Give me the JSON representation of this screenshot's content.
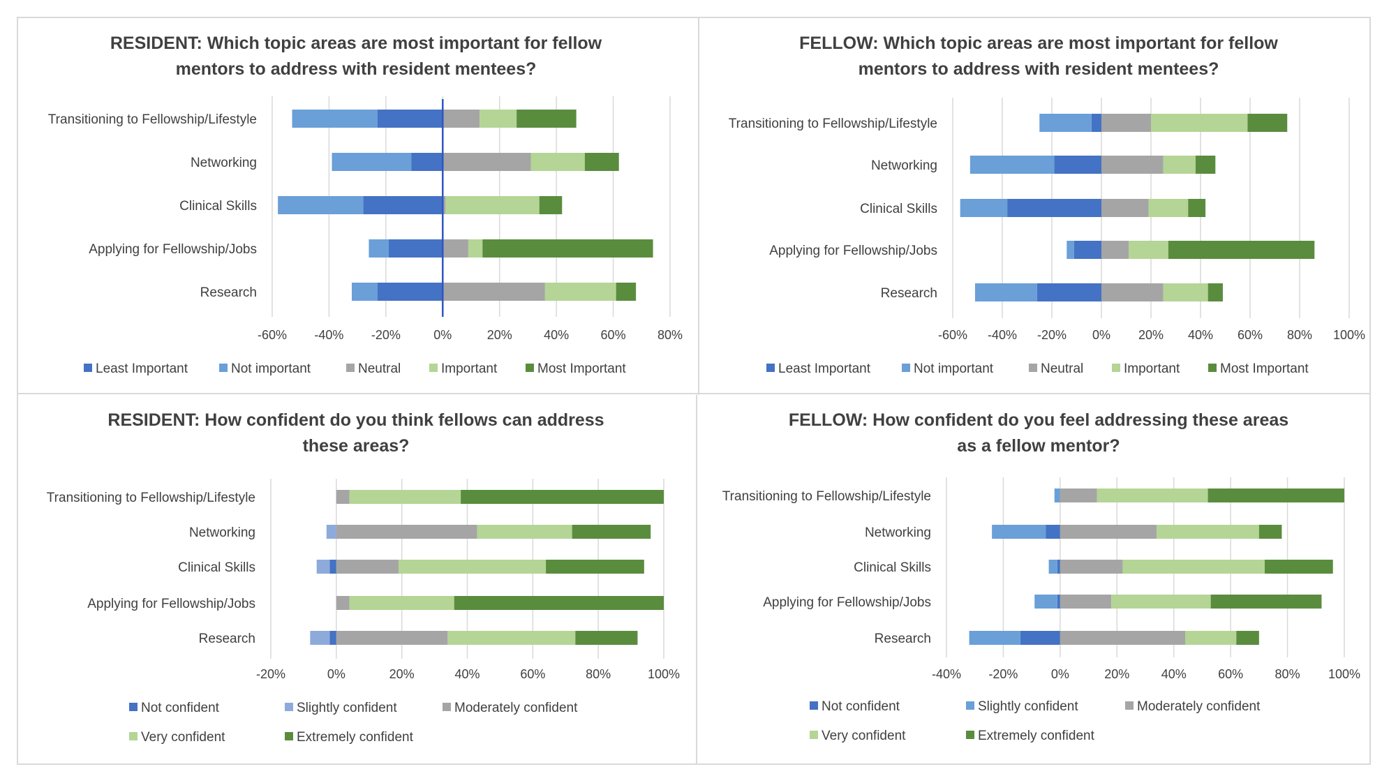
{
  "chart_data": [
    {
      "type": "bar",
      "subtype": "diverging-stacked-horizontal",
      "title": "RESIDENT: Which topic areas are most important for fellow mentors to address with resident mentees?",
      "title_lines": [
        "RESIDENT: Which topic areas are most important for fellow",
        "mentors to address with resident mentees?"
      ],
      "categories": [
        "Transitioning to Fellowship/Lifestyle",
        "Networking",
        "Clinical Skills",
        "Applying for Fellowship/Jobs",
        "Research"
      ],
      "xlim": [
        -60,
        80
      ],
      "xticks": [
        -60,
        -40,
        -20,
        0,
        20,
        40,
        60,
        80
      ],
      "tick_labels": [
        "-60%",
        "-40%",
        "-20%",
        "0%",
        "20%",
        "40%",
        "60%",
        "80%"
      ],
      "zero_line": true,
      "grid": true,
      "legend_position": "bottom",
      "series": [
        {
          "name": "Least Important",
          "color": "#4472c4",
          "values": [
            -23,
            -11,
            -28,
            -19,
            -23
          ]
        },
        {
          "name": "Not important",
          "color": "#6a9fd8",
          "values": [
            -30,
            -28,
            -30,
            -7,
            -9
          ]
        },
        {
          "name": "Neutral",
          "color": "#a5a5a5",
          "values": [
            13,
            31,
            1,
            9,
            36
          ]
        },
        {
          "name": "Important",
          "color": "#b4d595",
          "values": [
            13,
            19,
            33,
            5,
            25
          ]
        },
        {
          "name": "Most Important",
          "color": "#5a8c3e",
          "values": [
            21,
            12,
            8,
            60,
            7
          ]
        }
      ],
      "negative_series": [
        "Least Important",
        "Not important"
      ]
    },
    {
      "type": "bar",
      "subtype": "diverging-stacked-horizontal",
      "title": "FELLOW: Which topic areas are most important for fellow mentors to address with resident mentees?",
      "title_lines": [
        "FELLOW: Which topic areas are most important for fellow",
        "mentors to address with resident mentees?"
      ],
      "categories": [
        "Transitioning to Fellowship/Lifestyle",
        "Networking",
        "Clinical Skills",
        "Applying for Fellowship/Jobs",
        "Research"
      ],
      "xlim": [
        -60,
        100
      ],
      "xticks": [
        -60,
        -40,
        -20,
        0,
        20,
        40,
        60,
        80,
        100
      ],
      "tick_labels": [
        "-60%",
        "-40%",
        "-20%",
        "0%",
        "20%",
        "40%",
        "60%",
        "80%",
        "100%"
      ],
      "zero_line": false,
      "grid": true,
      "legend_position": "bottom",
      "series": [
        {
          "name": "Least Important",
          "color": "#4472c4",
          "values": [
            -4,
            -19,
            -38,
            -11,
            -26
          ]
        },
        {
          "name": "Not important",
          "color": "#6a9fd8",
          "values": [
            -21,
            -34,
            -19,
            -3,
            -25
          ]
        },
        {
          "name": "Neutral",
          "color": "#a5a5a5",
          "values": [
            20,
            25,
            19,
            11,
            25
          ]
        },
        {
          "name": "Important",
          "color": "#b4d595",
          "values": [
            39,
            13,
            16,
            16,
            18
          ]
        },
        {
          "name": "Most Important",
          "color": "#5a8c3e",
          "values": [
            16,
            8,
            7,
            59,
            6
          ]
        }
      ],
      "negative_series": [
        "Least Important",
        "Not important"
      ]
    },
    {
      "type": "bar",
      "subtype": "diverging-stacked-horizontal",
      "title": "RESIDENT: How confident do you think fellows can address these areas?",
      "title_lines": [
        "RESIDENT: How confident do you think fellows can address",
        "these areas?"
      ],
      "categories": [
        "Transitioning to Fellowship/Lifestyle",
        "Networking",
        "Clinical Skills",
        "Applying for Fellowship/Jobs",
        "Research"
      ],
      "xlim": [
        -20,
        100
      ],
      "xticks": [
        -20,
        0,
        20,
        40,
        60,
        80,
        100
      ],
      "tick_labels": [
        "-20%",
        "0%",
        "20%",
        "40%",
        "60%",
        "80%",
        "100%"
      ],
      "zero_line": false,
      "grid": true,
      "legend_position": "bottom",
      "series": [
        {
          "name": "Not confident",
          "color": "#4472c4",
          "values": [
            0,
            0,
            -2,
            0,
            -2
          ]
        },
        {
          "name": "Slightly confident",
          "color": "#8eaadb",
          "values": [
            0,
            -3,
            -4,
            0,
            -6
          ]
        },
        {
          "name": "Moderately confident",
          "color": "#a5a5a5",
          "values": [
            4,
            43,
            19,
            4,
            34
          ]
        },
        {
          "name": "Very confident",
          "color": "#b4d595",
          "values": [
            34,
            29,
            45,
            32,
            39
          ]
        },
        {
          "name": "Extremely confident",
          "color": "#5a8c3e",
          "values": [
            62,
            24,
            30,
            64,
            19
          ]
        }
      ],
      "negative_series": [
        "Not confident",
        "Slightly confident"
      ]
    },
    {
      "type": "bar",
      "subtype": "diverging-stacked-horizontal",
      "title": "FELLOW: How confident do you feel addressing these areas as a fellow mentor?",
      "title_lines": [
        "FELLOW: How confident do you feel addressing these areas",
        "as a fellow mentor?"
      ],
      "categories": [
        "Transitioning to Fellowship/Lifestyle",
        "Networking",
        "Clinical Skills",
        "Applying for Fellowship/Jobs",
        "Research"
      ],
      "xlim": [
        -40,
        100
      ],
      "xticks": [
        -40,
        -20,
        0,
        20,
        40,
        60,
        80,
        100
      ],
      "tick_labels": [
        "-40%",
        "-20%",
        "0%",
        "20%",
        "40%",
        "60%",
        "80%",
        "100%"
      ],
      "zero_line": false,
      "grid": true,
      "legend_position": "bottom",
      "series": [
        {
          "name": "Not confident",
          "color": "#4472c4",
          "values": [
            0,
            -5,
            -1,
            -1,
            -14
          ]
        },
        {
          "name": "Slightly confident",
          "color": "#6a9fd8",
          "values": [
            -2,
            -19,
            -3,
            -8,
            -18
          ]
        },
        {
          "name": "Moderately confident",
          "color": "#a5a5a5",
          "values": [
            13,
            34,
            22,
            18,
            44
          ]
        },
        {
          "name": "Very confident",
          "color": "#b4d595",
          "values": [
            39,
            36,
            50,
            35,
            18
          ]
        },
        {
          "name": "Extremely confident",
          "color": "#5a8c3e",
          "values": [
            48,
            8,
            24,
            39,
            8
          ]
        }
      ],
      "negative_series": [
        "Not confident",
        "Slightly confident"
      ]
    }
  ]
}
